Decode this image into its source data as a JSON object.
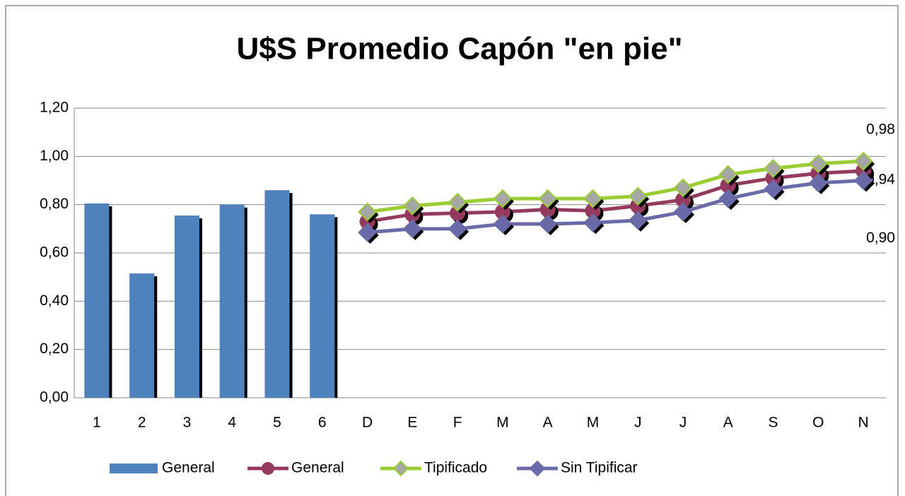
{
  "chart_data": {
    "type": "bar_line",
    "title": "U$S Promedio Capón \"en pie\"",
    "categories": [
      "1",
      "2",
      "3",
      "4",
      "5",
      "6",
      "D",
      "E",
      "F",
      "M",
      "A",
      "M",
      "J",
      "J",
      "A",
      "S",
      "O",
      "N"
    ],
    "series": [
      {
        "name": "General",
        "type": "bar",
        "color": "#4f81bd",
        "values": [
          0.805,
          0.515,
          0.755,
          0.8,
          0.86,
          0.76,
          null,
          null,
          null,
          null,
          null,
          null,
          null,
          null,
          null,
          null,
          null,
          null
        ]
      },
      {
        "name": "General",
        "type": "line",
        "color": "#953a5e",
        "marker": "circle",
        "values": [
          null,
          null,
          null,
          null,
          null,
          null,
          0.73,
          0.76,
          0.765,
          0.77,
          0.78,
          0.775,
          0.795,
          0.82,
          0.88,
          0.91,
          0.93,
          0.94
        ],
        "value_labels": [
          null,
          null,
          null,
          null,
          null,
          null,
          null,
          null,
          null,
          null,
          null,
          null,
          null,
          null,
          null,
          null,
          null,
          "0,94"
        ]
      },
      {
        "name": "Tipificado",
        "type": "line",
        "color": "#9acd32",
        "marker": "diamond",
        "marker_color": "#a6a6a6",
        "values": [
          null,
          null,
          null,
          null,
          null,
          null,
          0.77,
          0.795,
          0.81,
          0.825,
          0.825,
          0.825,
          0.835,
          0.87,
          0.925,
          0.95,
          0.97,
          0.98
        ],
        "value_labels": [
          null,
          null,
          null,
          null,
          null,
          null,
          null,
          null,
          null,
          null,
          null,
          null,
          null,
          null,
          null,
          null,
          null,
          "0,98"
        ]
      },
      {
        "name": "Sin Tipificar",
        "type": "line",
        "color": "#6b6aa8",
        "marker": "diamond",
        "values": [
          null,
          null,
          null,
          null,
          null,
          null,
          0.685,
          0.7,
          0.7,
          0.72,
          0.72,
          0.725,
          0.735,
          0.77,
          0.825,
          0.865,
          0.89,
          0.9
        ],
        "value_labels": [
          null,
          null,
          null,
          null,
          null,
          null,
          null,
          null,
          null,
          null,
          null,
          null,
          null,
          null,
          null,
          null,
          null,
          "0,90"
        ]
      }
    ],
    "ylim": [
      0,
      1.2
    ],
    "yticks": [
      {
        "value": 0,
        "label": "0,00"
      },
      {
        "value": 0.2,
        "label": "0,20"
      },
      {
        "value": 0.4,
        "label": "0,40"
      },
      {
        "value": 0.6,
        "label": "0,60"
      },
      {
        "value": 0.8,
        "label": "0,80"
      },
      {
        "value": 1.0,
        "label": "1,00"
      },
      {
        "value": 1.2,
        "label": "1,20"
      }
    ],
    "grid": true,
    "legend": "bottom"
  }
}
